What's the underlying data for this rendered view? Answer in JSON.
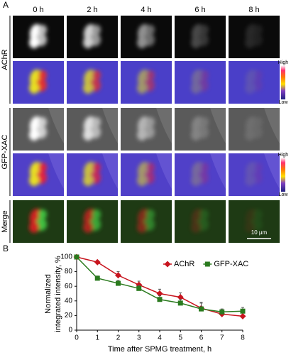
{
  "panel_a": {
    "label": "A",
    "columns": [
      "0 h",
      "2 h",
      "4 h",
      "6 h",
      "8 h"
    ],
    "row_labels": [
      "AChR",
      "GFP-XAC",
      "Merge"
    ],
    "colorbar": {
      "high": "High",
      "low": "Low"
    },
    "scale_bar": "10 µm"
  },
  "chart_data": {
    "type": "line",
    "panel_label": "B",
    "xlabel": "Time after SPMG treatment, h",
    "ylabel": [
      "Normalized",
      "integrated intensity, %"
    ],
    "x": [
      0,
      1,
      2,
      3,
      4,
      5,
      6,
      7,
      8
    ],
    "series": [
      {
        "name": "AChR",
        "color": "#c8141e",
        "marker": "diamond",
        "values": [
          100,
          93,
          75,
          62,
          50,
          45,
          30,
          22,
          19
        ],
        "errors": [
          0,
          2,
          5,
          5,
          6,
          6,
          8,
          5,
          5
        ]
      },
      {
        "name": "GFP-XAC",
        "color": "#2a7a1e",
        "marker": "square",
        "values": [
          100,
          71,
          64,
          57,
          42,
          37,
          29,
          25,
          26
        ],
        "errors": [
          0,
          3,
          4,
          4,
          5,
          5,
          8,
          4,
          5
        ]
      }
    ],
    "xlim": [
      0,
      8
    ],
    "xticks": [
      0,
      1,
      2,
      3,
      4,
      5,
      6,
      7,
      8
    ],
    "ylim": [
      0,
      100
    ],
    "yticks": [
      0,
      20,
      40,
      60,
      80,
      100
    ],
    "legend": "top-right",
    "grid": false
  }
}
